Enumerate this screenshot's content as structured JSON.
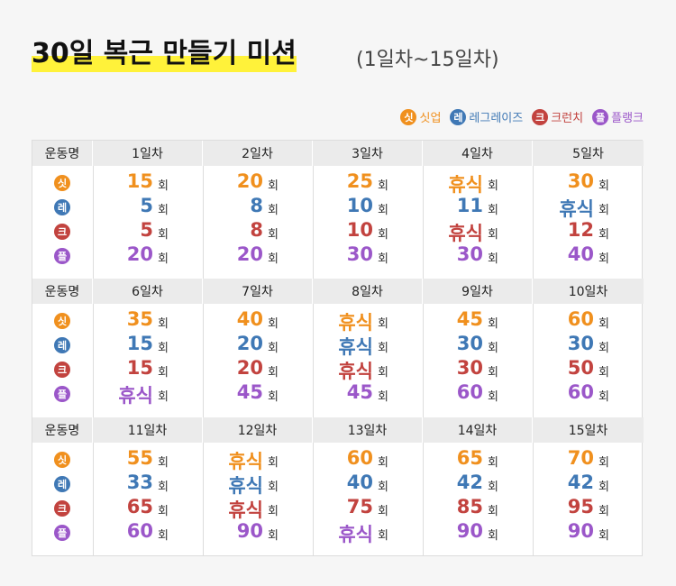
{
  "header": {
    "title": "30일 복근 만들기 미션",
    "subtitle": "(1일차~15일차)"
  },
  "exercise_header": "운동명",
  "unit": "회",
  "exercises": [
    {
      "badge": "싯",
      "name": "싯업",
      "color": "#f0901e"
    },
    {
      "badge": "레",
      "name": "레그레이즈",
      "color": "#3f78b5"
    },
    {
      "badge": "크",
      "name": "크런치",
      "color": "#c2433f"
    },
    {
      "badge": "플",
      "name": "플랭크",
      "color": "#9b57c9"
    }
  ],
  "days": [
    {
      "label": "1일차",
      "values": [
        15,
        5,
        5,
        20
      ]
    },
    {
      "label": "2일차",
      "values": [
        20,
        8,
        8,
        20
      ]
    },
    {
      "label": "3일차",
      "values": [
        25,
        10,
        10,
        30
      ]
    },
    {
      "label": "4일차",
      "values": [
        "휴식",
        11,
        "휴식",
        30
      ]
    },
    {
      "label": "5일차",
      "values": [
        30,
        "휴식",
        12,
        40
      ]
    },
    {
      "label": "6일차",
      "values": [
        35,
        15,
        15,
        "휴식"
      ]
    },
    {
      "label": "7일차",
      "values": [
        40,
        20,
        20,
        45
      ]
    },
    {
      "label": "8일차",
      "values": [
        "휴식",
        "휴식",
        "휴식",
        45
      ]
    },
    {
      "label": "9일차",
      "values": [
        45,
        30,
        30,
        60
      ]
    },
    {
      "label": "10일차",
      "values": [
        60,
        30,
        50,
        60
      ]
    },
    {
      "label": "11일차",
      "values": [
        55,
        33,
        65,
        60
      ]
    },
    {
      "label": "12일차",
      "values": [
        "휴식",
        "휴식",
        "휴식",
        90
      ]
    },
    {
      "label": "13일차",
      "values": [
        60,
        40,
        75,
        "휴식"
      ]
    },
    {
      "label": "14일차",
      "values": [
        65,
        42,
        85,
        90
      ]
    },
    {
      "label": "15일차",
      "values": [
        70,
        42,
        95,
        90
      ]
    }
  ]
}
